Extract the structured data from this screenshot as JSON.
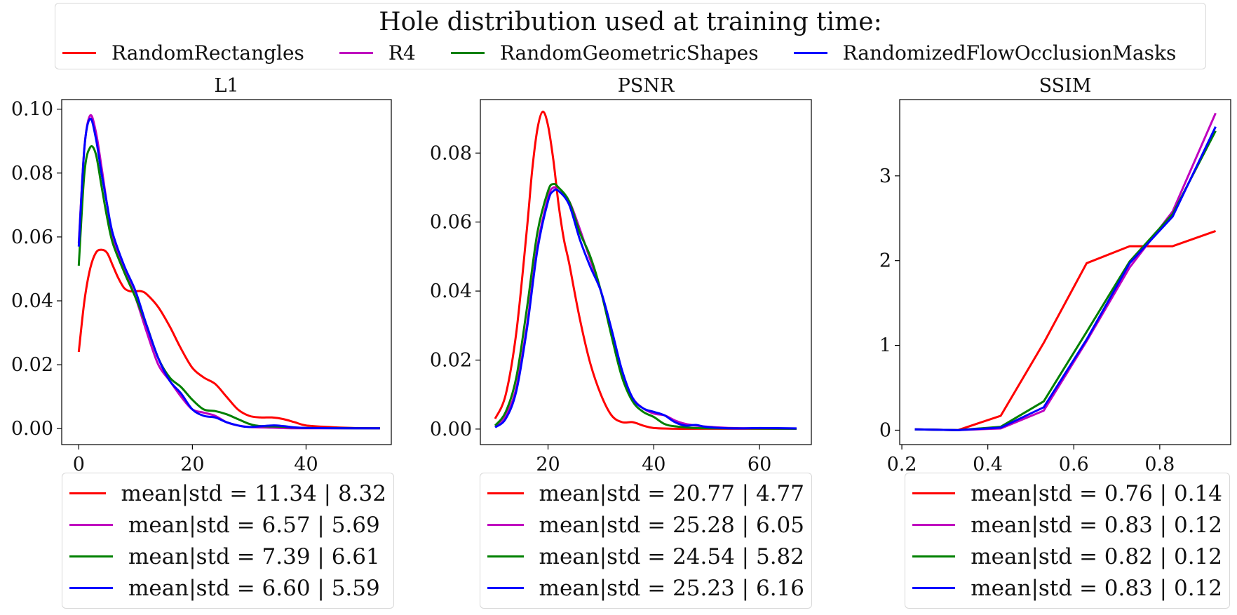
{
  "legend_title": "Hole distribution used at training time:",
  "series_legend": [
    {
      "label": "RandomRectangles",
      "color": "#ff0000"
    },
    {
      "label": "R4",
      "color": "#bf00bf"
    },
    {
      "label": "RandomGeometricShapes",
      "color": "#008000"
    },
    {
      "label": "RandomizedFlowOcclusionMasks",
      "color": "#0000ff"
    }
  ],
  "chart_data": [
    {
      "type": "line",
      "title": "L1",
      "xlim": [
        -3,
        55
      ],
      "ylim": [
        -0.005,
        0.103
      ],
      "xticks": [
        0,
        20,
        40
      ],
      "xticklabels": [
        "0",
        "20",
        "40"
      ],
      "yticks": [
        0,
        0.02,
        0.04,
        0.06,
        0.08,
        0.1
      ],
      "yticklabels": [
        "0.00",
        "0.02",
        "0.04",
        "0.06",
        "0.08",
        "0.10"
      ],
      "series": [
        {
          "name": "RandomRectangles",
          "color": "#ff0000",
          "x": [
            0,
            1,
            2,
            3,
            4,
            5,
            6,
            7,
            8,
            9,
            10,
            11,
            12,
            14,
            16,
            18,
            20,
            22,
            24,
            26,
            28,
            30,
            32,
            34,
            36,
            38,
            40,
            44,
            48,
            53
          ],
          "y": [
            0.024,
            0.04,
            0.05,
            0.055,
            0.056,
            0.055,
            0.051,
            0.047,
            0.044,
            0.043,
            0.043,
            0.043,
            0.042,
            0.038,
            0.032,
            0.025,
            0.019,
            0.016,
            0.014,
            0.01,
            0.006,
            0.004,
            0.0035,
            0.0035,
            0.003,
            0.002,
            0.001,
            0.0005,
            0.0002,
            0.0001
          ],
          "legend": "mean|std = 11.34 | 8.32"
        },
        {
          "name": "R4",
          "color": "#bf00bf",
          "x": [
            0,
            1,
            2,
            3,
            4,
            5,
            6,
            8,
            10,
            12,
            14,
            16,
            18,
            20,
            22,
            24,
            26,
            28,
            30,
            34,
            38,
            44,
            53
          ],
          "y": [
            0.058,
            0.088,
            0.098,
            0.093,
            0.082,
            0.07,
            0.06,
            0.05,
            0.041,
            0.03,
            0.02,
            0.015,
            0.01,
            0.006,
            0.005,
            0.004,
            0.002,
            0.001,
            0.0005,
            0.0003,
            0.0001,
            0.0001,
            0.0001
          ],
          "legend": "mean|std = 6.57 | 5.69"
        },
        {
          "name": "RandomGeometricShapes",
          "color": "#008000",
          "x": [
            0,
            1,
            2,
            3,
            4,
            5,
            6,
            8,
            10,
            12,
            14,
            16,
            18,
            20,
            22,
            24,
            26,
            28,
            30,
            32,
            36,
            40,
            53
          ],
          "y": [
            0.051,
            0.08,
            0.088,
            0.086,
            0.076,
            0.066,
            0.058,
            0.049,
            0.041,
            0.032,
            0.022,
            0.016,
            0.013,
            0.009,
            0.006,
            0.0055,
            0.0045,
            0.003,
            0.0015,
            0.0008,
            0.0006,
            0.0002,
            0.0001
          ],
          "legend": "mean|std = 7.39 | 6.61"
        },
        {
          "name": "RandomizedFlowOcclusionMasks",
          "color": "#0000ff",
          "x": [
            0,
            1,
            2,
            3,
            4,
            5,
            6,
            8,
            10,
            12,
            14,
            16,
            18,
            20,
            22,
            24,
            26,
            28,
            30,
            34,
            36,
            40,
            53
          ],
          "y": [
            0.057,
            0.088,
            0.097,
            0.091,
            0.08,
            0.07,
            0.061,
            0.051,
            0.043,
            0.032,
            0.022,
            0.015,
            0.011,
            0.006,
            0.004,
            0.0035,
            0.002,
            0.001,
            0.0005,
            0.001,
            0.0008,
            0.0002,
            0.0001
          ],
          "legend": "mean|std = 6.60 | 5.59"
        }
      ]
    },
    {
      "type": "line",
      "title": "PSNR",
      "xlim": [
        7.2,
        69.8
      ],
      "ylim": [
        -0.0045,
        0.0955
      ],
      "xticks": [
        20,
        40,
        60
      ],
      "xticklabels": [
        "20",
        "40",
        "60"
      ],
      "yticks": [
        0,
        0.02,
        0.04,
        0.06,
        0.08
      ],
      "yticklabels": [
        "0.00",
        "0.02",
        "0.04",
        "0.06",
        "0.08"
      ],
      "series": [
        {
          "name": "RandomRectangles",
          "color": "#ff0000",
          "x": [
            10,
            12,
            14,
            16,
            17,
            18,
            19,
            20,
            21,
            22,
            23,
            24,
            26,
            28,
            30,
            32,
            34,
            36,
            38,
            40,
            44,
            50,
            67
          ],
          "y": [
            0.003,
            0.01,
            0.028,
            0.058,
            0.075,
            0.087,
            0.092,
            0.088,
            0.078,
            0.065,
            0.055,
            0.048,
            0.032,
            0.019,
            0.01,
            0.004,
            0.002,
            0.002,
            0.001,
            0.0003,
            0.0001,
            0.0001,
            0.0001
          ],
          "legend": "mean|std = 20.77 | 4.77"
        },
        {
          "name": "R4",
          "color": "#bf00bf",
          "x": [
            10,
            12,
            14,
            16,
            18,
            20,
            21,
            22,
            24,
            26,
            28,
            30,
            32,
            34,
            36,
            38,
            40,
            42,
            44,
            46,
            48,
            50,
            55,
            60,
            67
          ],
          "y": [
            0.001,
            0.004,
            0.012,
            0.03,
            0.053,
            0.067,
            0.07,
            0.069,
            0.066,
            0.058,
            0.049,
            0.04,
            0.028,
            0.016,
            0.009,
            0.006,
            0.0045,
            0.004,
            0.0025,
            0.0015,
            0.001,
            0.0007,
            0.0003,
            0.0002,
            0.0001
          ],
          "legend": "mean|std = 25.28 | 6.05"
        },
        {
          "name": "RandomGeometricShapes",
          "color": "#008000",
          "x": [
            10,
            12,
            14,
            16,
            18,
            20,
            21,
            22,
            24,
            26,
            28,
            30,
            32,
            34,
            36,
            38,
            40,
            42,
            44,
            48,
            55,
            67
          ],
          "y": [
            0.001,
            0.005,
            0.015,
            0.035,
            0.057,
            0.069,
            0.071,
            0.07,
            0.066,
            0.057,
            0.05,
            0.04,
            0.027,
            0.015,
            0.008,
            0.005,
            0.0035,
            0.0015,
            0.0008,
            0.0003,
            0.0002,
            0.0001
          ],
          "legend": "mean|std = 24.54 | 5.82"
        },
        {
          "name": "RandomizedFlowOcclusionMasks",
          "color": "#0000ff",
          "x": [
            10,
            12,
            14,
            16,
            18,
            20,
            21,
            22,
            24,
            26,
            28,
            30,
            32,
            34,
            36,
            38,
            40,
            42,
            44,
            46,
            48,
            50,
            55,
            60,
            67
          ],
          "y": [
            0.0005,
            0.003,
            0.011,
            0.029,
            0.052,
            0.066,
            0.069,
            0.069,
            0.065,
            0.055,
            0.047,
            0.04,
            0.029,
            0.017,
            0.009,
            0.006,
            0.005,
            0.004,
            0.002,
            0.001,
            0.0012,
            0.0006,
            0.0002,
            0.0003,
            0.0002
          ],
          "legend": "mean|std = 25.23 | 6.16"
        }
      ]
    },
    {
      "type": "line",
      "title": "SSIM",
      "xlim": [
        0.195,
        0.965
      ],
      "ylim": [
        -0.17,
        3.9
      ],
      "xticks": [
        0.2,
        0.4,
        0.6,
        0.8
      ],
      "xticklabels": [
        "0.2",
        "0.4",
        "0.6",
        "0.8"
      ],
      "yticks": [
        0,
        1,
        2,
        3
      ],
      "yticklabels": [
        "0",
        "1",
        "2",
        "3"
      ],
      "series": [
        {
          "name": "RandomRectangles",
          "color": "#ff0000",
          "x": [
            0.23,
            0.33,
            0.43,
            0.53,
            0.63,
            0.73,
            0.83,
            0.93
          ],
          "y": [
            0.01,
            0.0,
            0.17,
            1.03,
            1.97,
            2.17,
            2.17,
            2.35
          ],
          "legend": "mean|std = 0.76 | 0.14"
        },
        {
          "name": "R4",
          "color": "#bf00bf",
          "x": [
            0.23,
            0.33,
            0.43,
            0.53,
            0.63,
            0.73,
            0.83,
            0.93
          ],
          "y": [
            0.01,
            0.0,
            0.02,
            0.23,
            1.05,
            1.92,
            2.58,
            3.74
          ],
          "legend": "mean|std = 0.83 | 0.12"
        },
        {
          "name": "RandomGeometricShapes",
          "color": "#008000",
          "x": [
            0.23,
            0.33,
            0.43,
            0.53,
            0.63,
            0.73,
            0.83,
            0.93
          ],
          "y": [
            0.01,
            0.0,
            0.04,
            0.34,
            1.16,
            1.99,
            2.55,
            3.53
          ],
          "legend": "mean|std = 0.82 | 0.12"
        },
        {
          "name": "RandomizedFlowOcclusionMasks",
          "color": "#0000ff",
          "x": [
            0.23,
            0.33,
            0.43,
            0.53,
            0.63,
            0.73,
            0.83,
            0.93
          ],
          "y": [
            0.01,
            0.0,
            0.03,
            0.27,
            1.07,
            1.97,
            2.52,
            3.58
          ],
          "legend": "mean|std = 0.83 | 0.12"
        }
      ]
    }
  ]
}
